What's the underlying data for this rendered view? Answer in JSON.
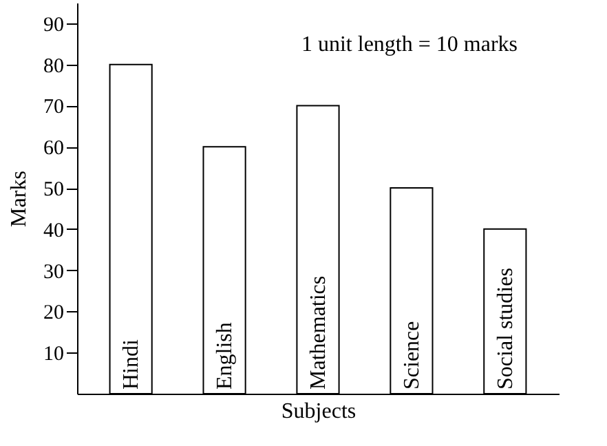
{
  "chart_data": {
    "type": "bar",
    "xlabel": "Subjects",
    "ylabel": "Marks",
    "categories": [
      "Hindi",
      "English",
      "Mathematics",
      "Science",
      "Social studies"
    ],
    "values": [
      80,
      60,
      70,
      50,
      40
    ],
    "color": "#ffffff",
    "ylim": [
      0,
      95
    ],
    "yticks": [
      10,
      20,
      30,
      40,
      50,
      60,
      70,
      80,
      90
    ],
    "grid": false,
    "annotations": [
      "1 unit length = 10 marks"
    ]
  }
}
